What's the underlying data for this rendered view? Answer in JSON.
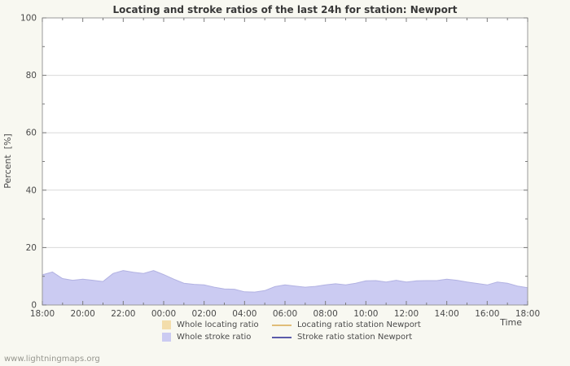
{
  "page": {
    "watermark": "www.lightningmaps.org",
    "background": "#f8f8f1"
  },
  "chart_data": {
    "type": "area",
    "title": "Locating and stroke ratios of the last 24h for station: Newport",
    "xlabel": "Time",
    "ylabel": "Percent  [%]",
    "ylim": [
      0,
      100
    ],
    "grid": true,
    "legend_position": "bottom",
    "y_ticks": [
      0,
      20,
      40,
      60,
      80,
      100
    ],
    "x_tick_labels": [
      "18:00",
      "20:00",
      "22:00",
      "00:00",
      "02:00",
      "04:00",
      "06:00",
      "08:00",
      "10:00",
      "12:00",
      "14:00",
      "16:00",
      "18:00"
    ],
    "x": [
      "18:00",
      "18:30",
      "19:00",
      "19:30",
      "20:00",
      "20:30",
      "21:00",
      "21:30",
      "22:00",
      "22:30",
      "23:00",
      "23:30",
      "00:00",
      "00:30",
      "01:00",
      "01:30",
      "02:00",
      "02:30",
      "03:00",
      "03:30",
      "04:00",
      "04:30",
      "05:00",
      "05:30",
      "06:00",
      "06:30",
      "07:00",
      "07:30",
      "08:00",
      "08:30",
      "09:00",
      "09:30",
      "10:00",
      "10:30",
      "11:00",
      "11:30",
      "12:00",
      "12:30",
      "13:00",
      "13:30",
      "14:00",
      "14:30",
      "15:00",
      "15:30",
      "16:00",
      "16:30",
      "17:00",
      "17:30",
      "18:00"
    ],
    "series": [
      {
        "name": "Whole locating ratio",
        "type": "area",
        "color": "#f3ddab",
        "values": []
      },
      {
        "name": "Whole stroke ratio",
        "type": "area",
        "color": "#cbcbf2",
        "edge": "#b2b2e2",
        "values": [
          10.5,
          11.5,
          9.2,
          8.6,
          9.0,
          8.6,
          8.2,
          11.0,
          12.0,
          11.4,
          11.0,
          12.0,
          10.6,
          9.0,
          7.6,
          7.2,
          7.0,
          6.2,
          5.6,
          5.5,
          4.6,
          4.5,
          5.0,
          6.4,
          7.0,
          6.6,
          6.2,
          6.5,
          7.0,
          7.4,
          7.0,
          7.6,
          8.4,
          8.5,
          8.0,
          8.6,
          8.0,
          8.4,
          8.5,
          8.5,
          9.0,
          8.6,
          8.0,
          7.5,
          7.0,
          8.0,
          7.6,
          6.6,
          6.0
        ]
      },
      {
        "name": "Locating ratio station Newport",
        "type": "line",
        "color": "#e0bd78",
        "values": []
      },
      {
        "name": "Stroke ratio station Newport",
        "type": "line",
        "color": "#5b5baa",
        "values": []
      }
    ],
    "legend": [
      {
        "label": "Whole locating ratio",
        "swatch": "fill",
        "color": "#f3ddab"
      },
      {
        "label": "Locating ratio station Newport",
        "swatch": "line",
        "color": "#e0bd78"
      },
      {
        "label": "Whole stroke ratio",
        "swatch": "fill",
        "color": "#cbcbf2"
      },
      {
        "label": "Stroke ratio station Newport",
        "swatch": "line",
        "color": "#5b5baa"
      }
    ]
  }
}
